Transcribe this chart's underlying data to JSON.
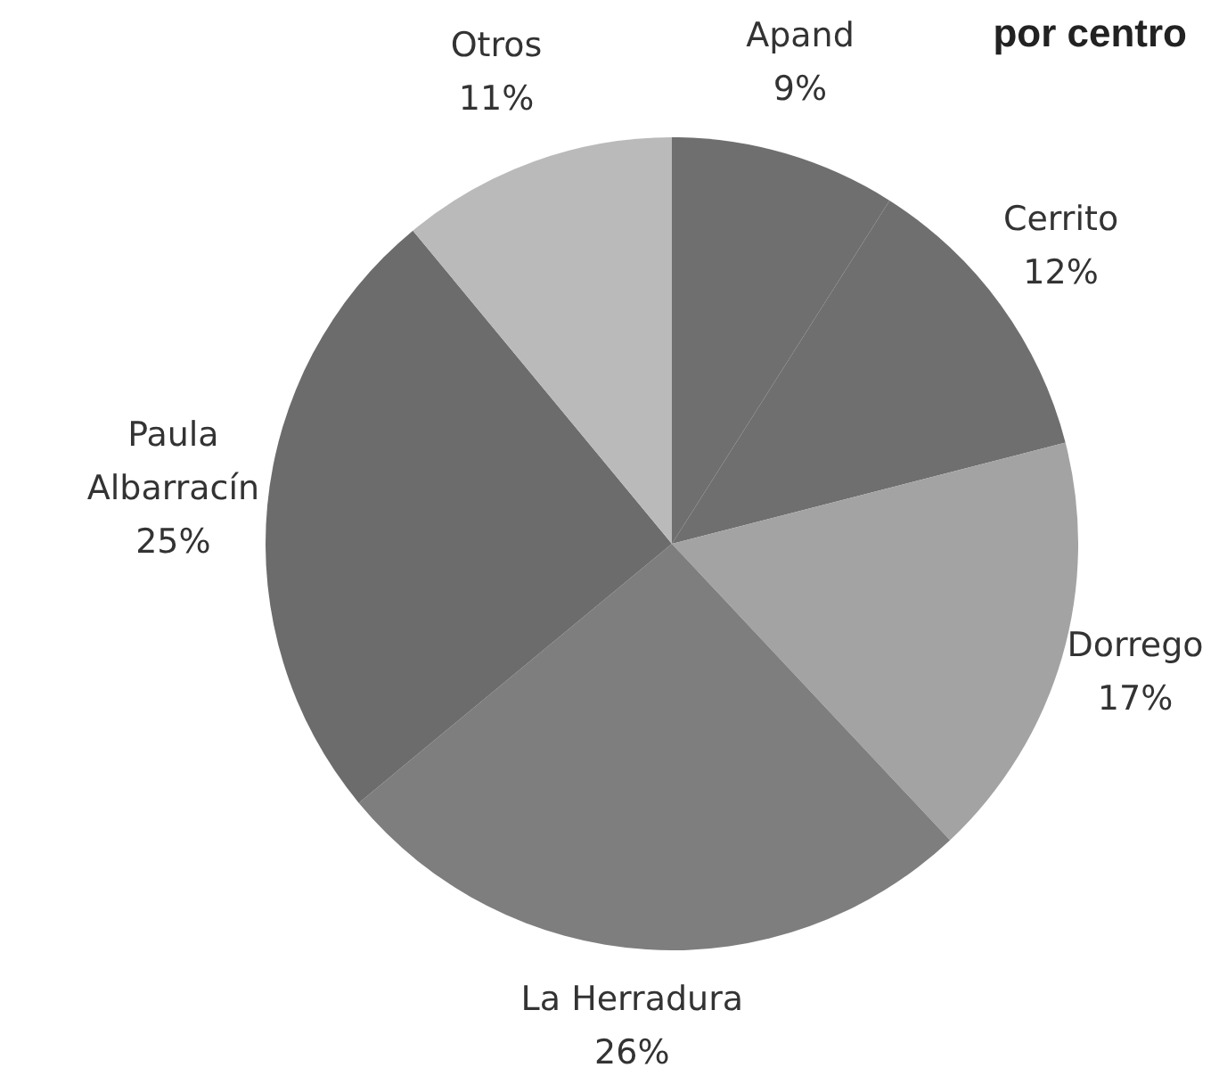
{
  "chart_data": {
    "type": "pie",
    "title": "por centro",
    "categories": [
      "Apand",
      "Cerrito",
      "Dorrego",
      "La Herradura",
      "Paula Albarracín",
      "Otros"
    ],
    "values": [
      9,
      12,
      17,
      26,
      25,
      11
    ],
    "value_labels": [
      "9%",
      "12%",
      "17%",
      "26%",
      "25%",
      "11%"
    ],
    "colors": [
      "#6f6f6f",
      "#6f6f6f",
      "#a3a3a3",
      "#7e7e7e",
      "#6c6c6c",
      "#bababa"
    ],
    "legend": false
  }
}
